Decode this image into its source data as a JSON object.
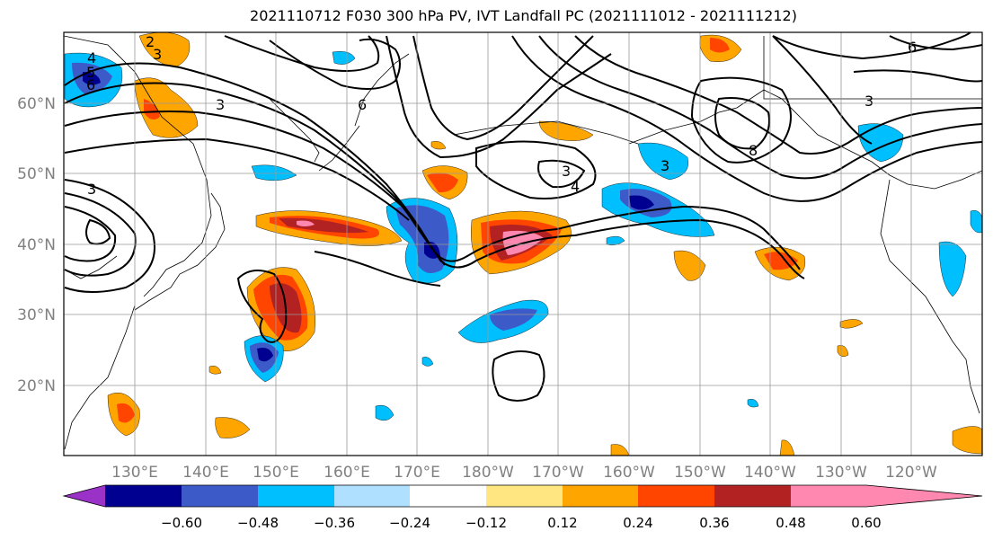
{
  "title": "2021110712 F030 300 hPa PV, IVT Landfall PC (2021111012 - 2021111212)",
  "lat_labels": [
    "60°N",
    "50°N",
    "40°N",
    "30°N",
    "20°N"
  ],
  "lon_labels": [
    "130°E",
    "140°E",
    "150°E",
    "160°E",
    "170°E",
    "180°W",
    "170°W",
    "160°W",
    "150°W",
    "140°W",
    "130°W",
    "120°W"
  ],
  "colorbar": {
    "colors": [
      "#9b32c8",
      "#000090",
      "#3c5ac8",
      "#00bfff",
      "#b0e0ff",
      "#ffffff",
      "#ffe680",
      "#ffa500",
      "#ff4500",
      "#b22222",
      "#ff88b0"
    ],
    "ticks": [
      "−0.60",
      "−0.48",
      "−0.36",
      "−0.24",
      "−0.12",
      "0.12",
      "0.24",
      "0.36",
      "0.48",
      "0.60"
    ]
  },
  "contour_labels": [
    "2",
    "3",
    "4",
    "5",
    "6",
    "6",
    "3",
    "3",
    "4",
    "3",
    "6",
    "3",
    "3",
    "8"
  ],
  "colors": {
    "axis_label": "#808080",
    "grid": "#999999",
    "contour": "#000000"
  }
}
